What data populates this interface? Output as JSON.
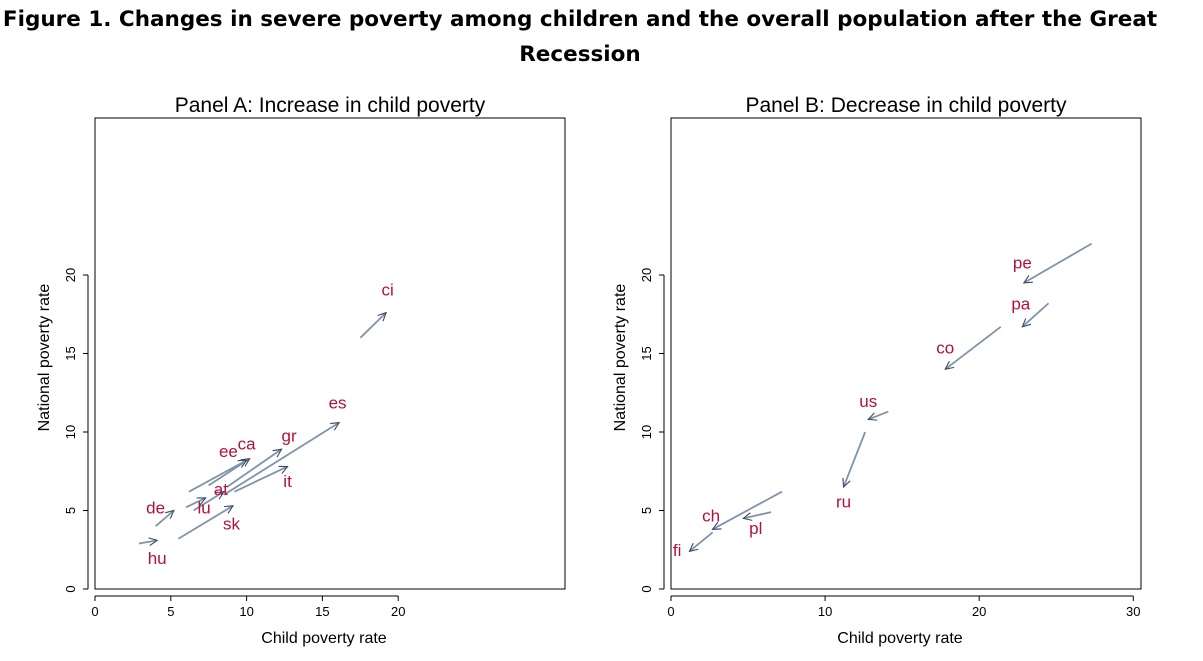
{
  "figure": {
    "title_line1": "Figure 1. Changes in severe poverty among children and the overall population after the Great",
    "title_line2": "Recession"
  },
  "colors": {
    "arrow": "#7f93aa",
    "arrow_head": "#3b4a66",
    "label": "#b5103c"
  },
  "chart_data": [
    {
      "type": "scatter",
      "subtype": "arrows",
      "title": "Panel A: Increase in child poverty",
      "xlabel": "Child poverty rate",
      "ylabel": "National poverty rate",
      "xlim": [
        0,
        31
      ],
      "ylim": [
        0,
        30
      ],
      "xticks": [
        0,
        5,
        10,
        15,
        20
      ],
      "yticks": [
        0,
        5,
        10,
        15,
        20
      ],
      "arrows": [
        {
          "label": "ci",
          "from": [
            17.5,
            16
          ],
          "to": [
            19.2,
            17.6
          ],
          "label_at": [
            19.3,
            18.7
          ]
        },
        {
          "label": "es",
          "from": [
            8.5,
            6.0
          ],
          "to": [
            16.1,
            10.6
          ],
          "label_at": [
            16.0,
            11.5
          ]
        },
        {
          "label": "gr",
          "from": [
            8.7,
            6.5
          ],
          "to": [
            12.3,
            8.9
          ],
          "label_at": [
            12.8,
            9.4
          ]
        },
        {
          "label": "ca",
          "from": [
            7.5,
            6.6
          ],
          "to": [
            10.2,
            8.3
          ],
          "label_at": [
            10.0,
            8.9
          ]
        },
        {
          "label": "ee",
          "from": [
            6.2,
            6.2
          ],
          "to": [
            10.0,
            8.2
          ],
          "label_at": [
            8.8,
            8.4
          ]
        },
        {
          "label": "it",
          "from": [
            9.2,
            6.2
          ],
          "to": [
            12.7,
            7.8
          ],
          "label_at": [
            12.7,
            6.5
          ]
        },
        {
          "label": "at",
          "from": [
            6.5,
            5.0
          ],
          "to": [
            8.5,
            6.2
          ],
          "label_at": [
            8.3,
            6.0
          ]
        },
        {
          "label": "lu",
          "from": [
            6.0,
            5.2
          ],
          "to": [
            7.3,
            5.8
          ],
          "label_at": [
            7.2,
            4.8
          ]
        },
        {
          "label": "de",
          "from": [
            4.0,
            4.0
          ],
          "to": [
            5.2,
            5.0
          ],
          "label_at": [
            4.0,
            4.8
          ]
        },
        {
          "label": "sk",
          "from": [
            5.5,
            3.2
          ],
          "to": [
            9.1,
            5.3
          ],
          "label_at": [
            9.0,
            3.8
          ]
        },
        {
          "label": "hu",
          "from": [
            2.9,
            2.9
          ],
          "to": [
            4.1,
            3.1
          ],
          "label_at": [
            4.1,
            1.6
          ]
        }
      ]
    },
    {
      "type": "scatter",
      "subtype": "arrows",
      "title": "Panel B: Decrease in child poverty",
      "xlabel": "Child poverty rate",
      "ylabel": "National poverty rate",
      "xlim": [
        0,
        30.5
      ],
      "ylim": [
        0,
        30
      ],
      "xticks": [
        0,
        10,
        20,
        30
      ],
      "yticks": [
        0,
        5,
        10,
        15,
        20
      ],
      "arrows": [
        {
          "label": "pe",
          "from": [
            27.3,
            22.0
          ],
          "to": [
            22.9,
            19.5
          ],
          "label_at": [
            22.8,
            20.4
          ]
        },
        {
          "label": "pa",
          "from": [
            24.5,
            18.2
          ],
          "to": [
            22.8,
            16.7
          ],
          "label_at": [
            22.7,
            17.8
          ]
        },
        {
          "label": "co",
          "from": [
            21.4,
            16.7
          ],
          "to": [
            17.8,
            14.0
          ],
          "label_at": [
            17.8,
            15.0
          ]
        },
        {
          "label": "us",
          "from": [
            14.1,
            11.3
          ],
          "to": [
            12.8,
            10.8
          ],
          "label_at": [
            12.8,
            11.6
          ]
        },
        {
          "label": "ru",
          "from": [
            12.6,
            10.0
          ],
          "to": [
            11.2,
            6.5
          ],
          "label_at": [
            11.2,
            5.2
          ]
        },
        {
          "label": "pl",
          "from": [
            6.5,
            4.9
          ],
          "to": [
            4.7,
            4.5
          ],
          "label_at": [
            5.5,
            3.5
          ]
        },
        {
          "label": "ch",
          "from": [
            7.2,
            6.2
          ],
          "to": [
            2.7,
            3.8
          ],
          "label_at": [
            2.6,
            4.3
          ]
        },
        {
          "label": "fi",
          "from": [
            2.7,
            3.6
          ],
          "to": [
            1.2,
            2.4
          ],
          "label_at": [
            0.4,
            2.1
          ]
        }
      ]
    }
  ]
}
